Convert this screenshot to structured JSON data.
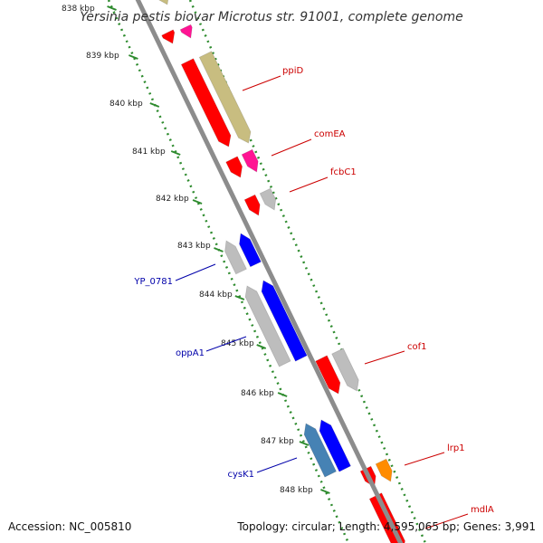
{
  "title": "Yersinia pestis biovar Microtus str. 91001, complete genome",
  "footer": {
    "accession": "Accession: NC_005810",
    "topology": "Topology: circular; Length: 4,595,065 bp; Genes: 3,991"
  },
  "colors": {
    "backbone": "#8c8c8c",
    "tick": "#2e8b2e",
    "forward_label": "#cc0000",
    "reverse_label": "#0000aa"
  },
  "kbp_labels": [
    "838 kbp",
    "839 kbp",
    "840 kbp",
    "841 kbp",
    "842 kbp",
    "843 kbp",
    "844 kbp",
    "845 kbp",
    "846 kbp",
    "847 kbp",
    "848 kbp"
  ],
  "genes": [
    {
      "name": "ppiD",
      "label": "ppiD",
      "color": "#ff0000",
      "strand": "forward"
    },
    {
      "name": "comEA",
      "label": "comEA",
      "color": "#ff1493",
      "strand": "forward"
    },
    {
      "name": "fcbC1",
      "label": "fcbC1",
      "color": "#ff0000",
      "strand": "forward"
    },
    {
      "name": "YP_0781",
      "label": "YP_0781",
      "color": "#bdbdbd",
      "strand": "reverse"
    },
    {
      "name": "oppA1",
      "label": "oppA1",
      "color": "#bdbdbd",
      "strand": "reverse"
    },
    {
      "name": "cof1",
      "label": "cof1",
      "color": "#ff0000",
      "strand": "forward"
    },
    {
      "name": "cysK1",
      "label": "cysK1",
      "color": "#4682b4",
      "strand": "reverse"
    },
    {
      "name": "lrp1",
      "label": "lrp1",
      "color": "#ff8c00",
      "strand": "forward"
    },
    {
      "name": "mdlA",
      "label": "mdlA",
      "color": "#ff0000",
      "strand": "forward"
    }
  ]
}
